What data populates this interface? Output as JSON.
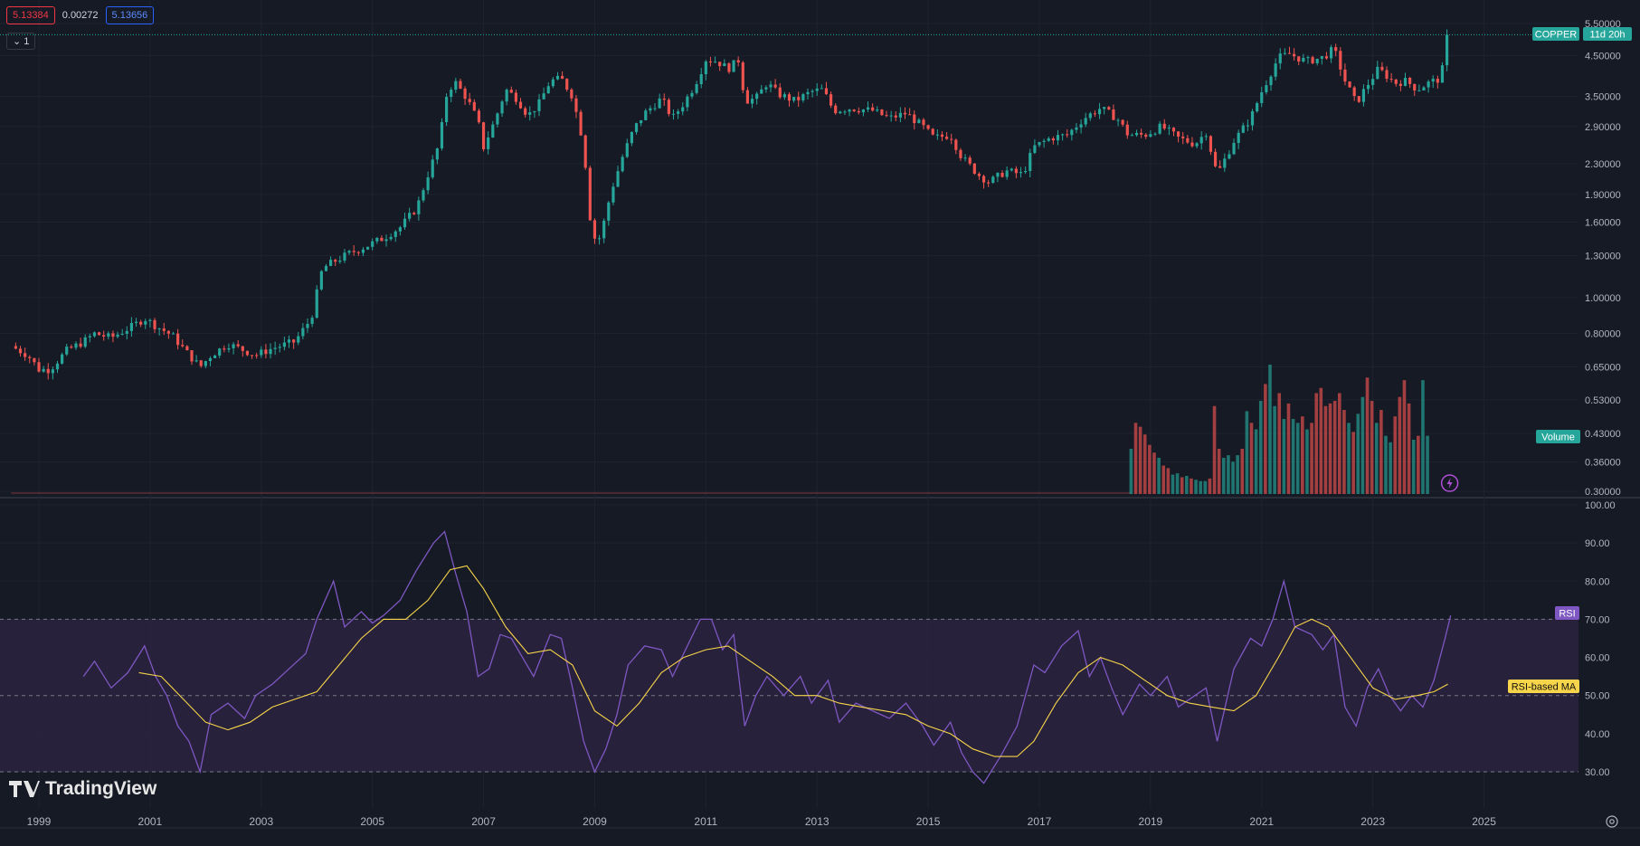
{
  "header": {
    "bid": "5.13384",
    "spread": "0.00272",
    "ask": "5.13656",
    "collapse_label": "1"
  },
  "labels": {
    "symbol": "COPPER",
    "countdown": "11d 20h",
    "volume": "Volume",
    "rsi": "RSI",
    "rsi_ma": "RSI-based MA",
    "brand": "TradingView"
  },
  "icons": {
    "collapse": "chevron-down-icon",
    "lightning": "lightning-icon",
    "logo": "tradingview-logo-icon",
    "settings": "gear-icon"
  },
  "colors": {
    "background": "#161a25",
    "up": "#26a69a",
    "down": "#ef5350",
    "rsi_line": "#7e57c2",
    "rsi_ma": "#f7d54a",
    "rsi_band": "#2a2340"
  },
  "chart_data": [
    {
      "type": "candlestick",
      "scale": "log",
      "y_ticks": [
        "5.50000",
        "4.50000",
        "3.50000",
        "2.90000",
        "2.30000",
        "1.90000",
        "1.60000",
        "1.30000",
        "1.00000",
        "0.80000",
        "0.65000",
        "0.53000",
        "0.43000",
        "0.36000",
        "0.30000"
      ],
      "x_ticks": [
        "1999",
        "2001",
        "2003",
        "2005",
        "2007",
        "2009",
        "2011",
        "2013",
        "2015",
        "2017",
        "2019",
        "2021",
        "2023",
        "2025"
      ],
      "ylim": [
        0.3,
        5.5
      ],
      "xlim": [
        1998.3,
        2026.7
      ],
      "last_price": 5.13,
      "path": [
        [
          1998.5,
          0.74
        ],
        [
          1998.8,
          0.7
        ],
        [
          1999.0,
          0.64
        ],
        [
          1999.2,
          0.64
        ],
        [
          1999.5,
          0.72
        ],
        [
          1999.8,
          0.76
        ],
        [
          2000.0,
          0.8
        ],
        [
          2000.3,
          0.78
        ],
        [
          2000.7,
          0.84
        ],
        [
          2000.9,
          0.88
        ],
        [
          2001.1,
          0.84
        ],
        [
          2001.4,
          0.79
        ],
        [
          2001.7,
          0.7
        ],
        [
          2001.9,
          0.65
        ],
        [
          2002.1,
          0.7
        ],
        [
          2002.4,
          0.75
        ],
        [
          2002.7,
          0.72
        ],
        [
          2002.9,
          0.7
        ],
        [
          2003.2,
          0.73
        ],
        [
          2003.6,
          0.76
        ],
        [
          2003.9,
          0.88
        ],
        [
          2004.1,
          1.2
        ],
        [
          2004.3,
          1.25
        ],
        [
          2004.6,
          1.32
        ],
        [
          2004.9,
          1.38
        ],
        [
          2005.2,
          1.45
        ],
        [
          2005.5,
          1.55
        ],
        [
          2005.8,
          1.75
        ],
        [
          2006.0,
          2.15
        ],
        [
          2006.2,
          2.6
        ],
        [
          2006.35,
          3.65
        ],
        [
          2006.5,
          3.8
        ],
        [
          2006.7,
          3.45
        ],
        [
          2006.9,
          3.0
        ],
        [
          2007.0,
          2.55
        ],
        [
          2007.2,
          3.0
        ],
        [
          2007.4,
          3.65
        ],
        [
          2007.6,
          3.45
        ],
        [
          2007.8,
          3.1
        ],
        [
          2008.0,
          3.35
        ],
        [
          2008.2,
          3.85
        ],
        [
          2008.4,
          3.9
        ],
        [
          2008.6,
          3.5
        ],
        [
          2008.8,
          2.6
        ],
        [
          2008.95,
          1.45
        ],
        [
          2009.1,
          1.45
        ],
        [
          2009.3,
          1.95
        ],
        [
          2009.5,
          2.4
        ],
        [
          2009.7,
          2.85
        ],
        [
          2009.9,
          3.15
        ],
        [
          2010.2,
          3.45
        ],
        [
          2010.4,
          3.05
        ],
        [
          2010.6,
          3.35
        ],
        [
          2010.8,
          3.75
        ],
        [
          2011.0,
          4.4
        ],
        [
          2011.2,
          4.35
        ],
        [
          2011.4,
          4.15
        ],
        [
          2011.6,
          4.4
        ],
        [
          2011.7,
          3.4
        ],
        [
          2011.9,
          3.45
        ],
        [
          2012.1,
          3.8
        ],
        [
          2012.3,
          3.55
        ],
        [
          2012.6,
          3.4
        ],
        [
          2012.9,
          3.6
        ],
        [
          2013.1,
          3.65
        ],
        [
          2013.3,
          3.2
        ],
        [
          2013.6,
          3.25
        ],
        [
          2014.0,
          3.2
        ],
        [
          2014.3,
          3.05
        ],
        [
          2014.6,
          3.15
        ],
        [
          2014.9,
          2.9
        ],
        [
          2015.1,
          2.7
        ],
        [
          2015.4,
          2.75
        ],
        [
          2015.6,
          2.4
        ],
        [
          2015.9,
          2.15
        ],
        [
          2016.1,
          2.05
        ],
        [
          2016.4,
          2.2
        ],
        [
          2016.7,
          2.15
        ],
        [
          2016.9,
          2.55
        ],
        [
          2017.2,
          2.7
        ],
        [
          2017.5,
          2.75
        ],
        [
          2017.8,
          3.05
        ],
        [
          2018.1,
          3.25
        ],
        [
          2018.4,
          3.05
        ],
        [
          2018.6,
          2.75
        ],
        [
          2018.9,
          2.75
        ],
        [
          2019.2,
          2.9
        ],
        [
          2019.5,
          2.7
        ],
        [
          2019.8,
          2.6
        ],
        [
          2020.0,
          2.8
        ],
        [
          2020.2,
          2.15
        ],
        [
          2020.5,
          2.65
        ],
        [
          2020.8,
          3.05
        ],
        [
          2021.0,
          3.6
        ],
        [
          2021.3,
          4.45
        ],
        [
          2021.5,
          4.55
        ],
        [
          2021.8,
          4.35
        ],
        [
          2022.1,
          4.45
        ],
        [
          2022.3,
          4.7
        ],
        [
          2022.5,
          3.85
        ],
        [
          2022.7,
          3.35
        ],
        [
          2022.9,
          3.75
        ],
        [
          2023.1,
          4.15
        ],
        [
          2023.4,
          3.8
        ],
        [
          2023.6,
          3.85
        ],
        [
          2023.8,
          3.65
        ],
        [
          2024.0,
          3.8
        ],
        [
          2024.2,
          3.9
        ],
        [
          2024.3,
          4.4
        ],
        [
          2024.35,
          5.13
        ]
      ]
    },
    {
      "type": "bar",
      "name": "Volume",
      "volume_start": 2018.65,
      "bars": [
        0.35,
        0.55,
        0.52,
        0.46,
        0.38,
        0.32,
        0.28,
        0.22,
        0.2,
        0.15,
        0.16,
        0.13,
        0.14,
        0.12,
        0.11,
        0.1,
        0.1,
        0.12,
        0.68,
        0.35,
        0.28,
        0.3,
        0.25,
        0.3,
        0.35,
        0.64,
        0.55,
        0.5,
        0.72,
        0.85,
        1.0,
        0.68,
        0.78,
        0.58,
        0.7,
        0.58,
        0.55,
        0.6,
        0.5,
        0.55,
        0.78,
        0.82,
        0.68,
        0.7,
        0.72,
        0.78,
        0.65,
        0.55,
        0.48,
        0.62,
        0.75,
        0.9,
        0.72,
        0.55,
        0.65,
        0.45,
        0.4,
        0.6,
        0.75,
        0.88,
        0.7,
        0.42,
        0.45,
        0.88,
        0.45
      ],
      "bar_colors": [
        "up",
        "down",
        "down",
        "down",
        "down",
        "down",
        "up",
        "down",
        "down",
        "up",
        "up",
        "down",
        "up",
        "down",
        "up",
        "up",
        "up",
        "down",
        "down",
        "down",
        "up",
        "up",
        "up",
        "up",
        "down",
        "up",
        "down",
        "up",
        "up",
        "down",
        "up",
        "up",
        "down",
        "up",
        "down",
        "up",
        "up",
        "down",
        "up",
        "down",
        "down",
        "down",
        "down",
        "down",
        "down",
        "down",
        "down",
        "up",
        "down",
        "up",
        "up",
        "down",
        "down",
        "up",
        "down",
        "up",
        "up",
        "down",
        "down",
        "down",
        "down",
        "up",
        "down",
        "up",
        "up"
      ]
    },
    {
      "type": "line",
      "name": "RSI",
      "y_ticks": [
        "100.00",
        "90.00",
        "80.00",
        "70.00",
        "60.00",
        "50.00",
        "40.00",
        "30.00"
      ],
      "ylim": [
        30,
        100
      ],
      "levels": [
        70,
        50,
        30
      ],
      "rsi": [
        [
          1999.8,
          55
        ],
        [
          2000.0,
          59
        ],
        [
          2000.3,
          52
        ],
        [
          2000.6,
          56
        ],
        [
          2000.9,
          63
        ],
        [
          2001.1,
          55
        ],
        [
          2001.3,
          50
        ],
        [
          2001.5,
          42
        ],
        [
          2001.7,
          38
        ],
        [
          2001.9,
          30
        ],
        [
          2002.1,
          45
        ],
        [
          2002.4,
          48
        ],
        [
          2002.7,
          44
        ],
        [
          2002.9,
          50
        ],
        [
          2003.2,
          53
        ],
        [
          2003.5,
          57
        ],
        [
          2003.8,
          61
        ],
        [
          2004.0,
          70
        ],
        [
          2004.3,
          80
        ],
        [
          2004.5,
          68
        ],
        [
          2004.8,
          72
        ],
        [
          2005.0,
          69
        ],
        [
          2005.2,
          71
        ],
        [
          2005.5,
          75
        ],
        [
          2005.8,
          83
        ],
        [
          2006.1,
          90
        ],
        [
          2006.3,
          93
        ],
        [
          2006.5,
          82
        ],
        [
          2006.7,
          72
        ],
        [
          2006.9,
          55
        ],
        [
          2007.1,
          57
        ],
        [
          2007.3,
          66
        ],
        [
          2007.5,
          65
        ],
        [
          2007.7,
          60
        ],
        [
          2007.9,
          55
        ],
        [
          2008.2,
          66
        ],
        [
          2008.4,
          65
        ],
        [
          2008.6,
          52
        ],
        [
          2008.8,
          38
        ],
        [
          2009.0,
          30
        ],
        [
          2009.2,
          36
        ],
        [
          2009.4,
          45
        ],
        [
          2009.6,
          58
        ],
        [
          2009.9,
          63
        ],
        [
          2010.2,
          62
        ],
        [
          2010.4,
          55
        ],
        [
          2010.7,
          64
        ],
        [
          2010.9,
          70
        ],
        [
          2011.1,
          70
        ],
        [
          2011.3,
          62
        ],
        [
          2011.5,
          66
        ],
        [
          2011.7,
          42
        ],
        [
          2011.9,
          50
        ],
        [
          2012.1,
          55
        ],
        [
          2012.4,
          50
        ],
        [
          2012.7,
          55
        ],
        [
          2012.9,
          48
        ],
        [
          2013.2,
          54
        ],
        [
          2013.4,
          43
        ],
        [
          2013.7,
          48
        ],
        [
          2014.0,
          46
        ],
        [
          2014.3,
          44
        ],
        [
          2014.6,
          48
        ],
        [
          2014.9,
          42
        ],
        [
          2015.1,
          37
        ],
        [
          2015.4,
          43
        ],
        [
          2015.6,
          35
        ],
        [
          2015.8,
          30
        ],
        [
          2016.0,
          27
        ],
        [
          2016.3,
          34
        ],
        [
          2016.6,
          42
        ],
        [
          2016.9,
          58
        ],
        [
          2017.1,
          56
        ],
        [
          2017.4,
          63
        ],
        [
          2017.7,
          67
        ],
        [
          2017.9,
          55
        ],
        [
          2018.1,
          60
        ],
        [
          2018.3,
          52
        ],
        [
          2018.5,
          45
        ],
        [
          2018.8,
          53
        ],
        [
          2019.0,
          50
        ],
        [
          2019.3,
          55
        ],
        [
          2019.5,
          47
        ],
        [
          2019.8,
          50
        ],
        [
          2020.0,
          52
        ],
        [
          2020.2,
          38
        ],
        [
          2020.5,
          57
        ],
        [
          2020.8,
          65
        ],
        [
          2021.0,
          63
        ],
        [
          2021.2,
          70
        ],
        [
          2021.4,
          80
        ],
        [
          2021.6,
          68
        ],
        [
          2021.9,
          66
        ],
        [
          2022.1,
          62
        ],
        [
          2022.3,
          66
        ],
        [
          2022.5,
          47
        ],
        [
          2022.7,
          42
        ],
        [
          2022.9,
          52
        ],
        [
          2023.1,
          57
        ],
        [
          2023.3,
          50
        ],
        [
          2023.5,
          46
        ],
        [
          2023.7,
          50
        ],
        [
          2023.9,
          47
        ],
        [
          2024.1,
          54
        ],
        [
          2024.3,
          65
        ],
        [
          2024.4,
          71
        ]
      ],
      "rsi_ma": [
        [
          2000.8,
          56
        ],
        [
          2001.2,
          55
        ],
        [
          2001.6,
          49
        ],
        [
          2002.0,
          43
        ],
        [
          2002.4,
          41
        ],
        [
          2002.8,
          43
        ],
        [
          2003.2,
          47
        ],
        [
          2003.6,
          49
        ],
        [
          2004.0,
          51
        ],
        [
          2004.4,
          58
        ],
        [
          2004.8,
          65
        ],
        [
          2005.2,
          70
        ],
        [
          2005.6,
          70
        ],
        [
          2006.0,
          75
        ],
        [
          2006.4,
          83
        ],
        [
          2006.7,
          84
        ],
        [
          2007.0,
          78
        ],
        [
          2007.4,
          68
        ],
        [
          2007.8,
          61
        ],
        [
          2008.2,
          62
        ],
        [
          2008.6,
          58
        ],
        [
          2009.0,
          46
        ],
        [
          2009.4,
          42
        ],
        [
          2009.8,
          48
        ],
        [
          2010.2,
          56
        ],
        [
          2010.6,
          60
        ],
        [
          2011.0,
          62
        ],
        [
          2011.4,
          63
        ],
        [
          2011.8,
          59
        ],
        [
          2012.2,
          55
        ],
        [
          2012.6,
          50
        ],
        [
          2013.0,
          50
        ],
        [
          2013.4,
          48
        ],
        [
          2013.8,
          47
        ],
        [
          2014.2,
          46
        ],
        [
          2014.6,
          45
        ],
        [
          2015.0,
          42
        ],
        [
          2015.4,
          40
        ],
        [
          2015.8,
          36
        ],
        [
          2016.2,
          34
        ],
        [
          2016.6,
          34
        ],
        [
          2016.9,
          38
        ],
        [
          2017.3,
          48
        ],
        [
          2017.7,
          56
        ],
        [
          2018.1,
          60
        ],
        [
          2018.5,
          58
        ],
        [
          2018.9,
          54
        ],
        [
          2019.3,
          50
        ],
        [
          2019.7,
          48
        ],
        [
          2020.1,
          47
        ],
        [
          2020.5,
          46
        ],
        [
          2020.9,
          50
        ],
        [
          2021.3,
          60
        ],
        [
          2021.6,
          68
        ],
        [
          2021.9,
          70
        ],
        [
          2022.2,
          68
        ],
        [
          2022.6,
          60
        ],
        [
          2023.0,
          52
        ],
        [
          2023.4,
          49
        ],
        [
          2023.8,
          50
        ],
        [
          2024.1,
          51
        ],
        [
          2024.35,
          53
        ]
      ]
    }
  ]
}
